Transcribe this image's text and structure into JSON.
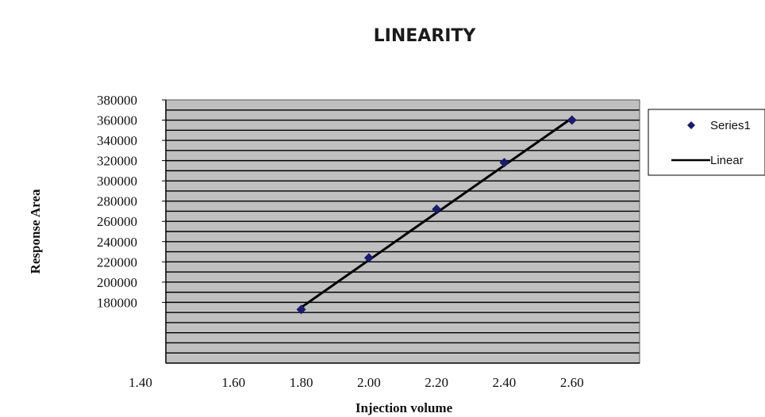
{
  "chart_data": {
    "type": "scatter",
    "title": "LINEARITY",
    "xlabel": "Injection volume",
    "ylabel": "Response Area",
    "x_ticks": [
      "1.40",
      "1.60",
      "1.80",
      "2.00",
      "2.20",
      "2.40",
      "2.60"
    ],
    "y_ticks": [
      "180000",
      "200000",
      "220000",
      "240000",
      "260000",
      "280000",
      "300000",
      "320000",
      "340000",
      "360000",
      "380000"
    ],
    "xlim": [
      1.4,
      2.8
    ],
    "ylim": [
      120000,
      380000
    ],
    "grid": true,
    "legend_position": "right",
    "colors": {
      "plot_bg": "#c0c0c0",
      "grid": "#000000",
      "marker": "#1a1a6e",
      "line": "#000000"
    },
    "series": [
      {
        "name": "Series1",
        "style": "markers",
        "x": [
          1.8,
          2.0,
          2.2,
          2.4,
          2.6
        ],
        "y": [
          173000,
          224000,
          272000,
          318000,
          360000
        ]
      },
      {
        "name": "Linear",
        "style": "line",
        "x": [
          1.8,
          2.6
        ],
        "y": [
          175000,
          362000
        ]
      }
    ]
  }
}
